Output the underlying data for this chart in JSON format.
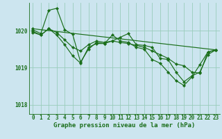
{
  "background_color": "#cce5ef",
  "grid_color": "#99ccbb",
  "line_color": "#1a6e1a",
  "marker_color": "#1a6e1a",
  "xlabel": "Graphe pression niveau de la mer (hPa)",
  "xlabel_fontsize": 6.5,
  "tick_fontsize": 5.5,
  "xlim": [
    -0.5,
    23.5
  ],
  "ylim": [
    1017.75,
    1020.75
  ],
  "yticks": [
    1018,
    1019,
    1020
  ],
  "xticks": [
    0,
    1,
    2,
    3,
    4,
    5,
    6,
    7,
    8,
    9,
    10,
    11,
    12,
    13,
    14,
    15,
    16,
    17,
    18,
    19,
    20,
    21,
    22,
    23
  ],
  "series": {
    "line_straight": {
      "x": [
        0,
        23
      ],
      "y": [
        1020.05,
        1019.48
      ]
    },
    "line_a": [
      1019.95,
      1019.88,
      1020.05,
      1019.95,
      1019.75,
      1019.55,
      1019.45,
      1019.62,
      1019.72,
      1019.68,
      1019.72,
      1019.68,
      1019.65,
      1019.6,
      1019.55,
      1019.45,
      1019.35,
      1019.25,
      1019.1,
      1019.05,
      1018.88,
      1018.85,
      1019.42,
      1019.48
    ],
    "line_b": [
      1020.02,
      1019.92,
      1020.55,
      1020.6,
      1020.02,
      1019.9,
      1019.15,
      1019.5,
      1019.68,
      1019.65,
      1019.72,
      1019.82,
      1019.92,
      1019.62,
      1019.6,
      1019.55,
      1019.25,
      1019.22,
      1018.88,
      1018.62,
      1018.78,
      1018.88,
      1019.35,
      1019.48
    ],
    "line_c": [
      1019.98,
      1019.88,
      1020.05,
      1019.88,
      1019.62,
      1019.32,
      1019.12,
      1019.55,
      1019.65,
      1019.65,
      1019.88,
      1019.72,
      1019.68,
      1019.55,
      1019.5,
      1019.22,
      1019.12,
      1018.88,
      1018.65,
      1018.52,
      1018.75,
      1019.08,
      1019.42,
      1019.48
    ]
  }
}
